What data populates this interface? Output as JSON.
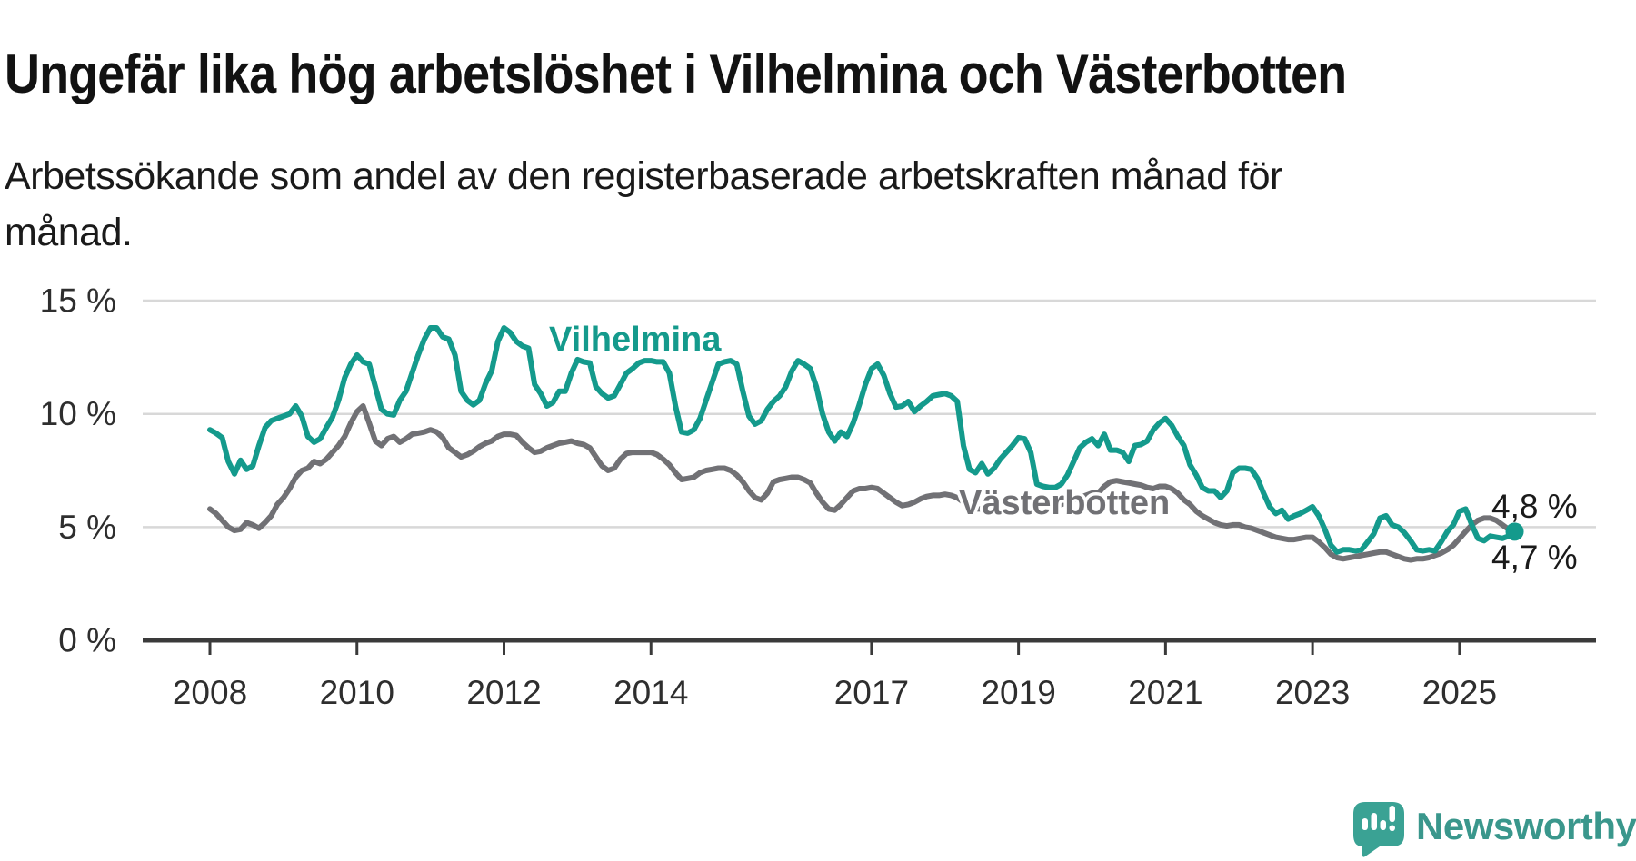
{
  "title": "Ungefär lika hög arbetslöshet i Vilhelmina och Västerbotten",
  "subtitle": "Arbetssökande som andel av den registerbaserade arbetskraften månad för månad.",
  "colors": {
    "vilhelmina": "#149a8c",
    "vasterbotten": "#717175",
    "grid": "#d8d8d8",
    "axis": "#3a3a3a",
    "axis_text": "#2e2e2e",
    "value_text": "#1a1a1a",
    "logo_teal": "#3aa294",
    "logo_text": "#3a978c"
  },
  "logo": {
    "text": "Newsworthy",
    "icon": "speech-bubble-bar-chart-icon"
  },
  "chart_data": {
    "type": "line",
    "title": "Ungefär lika hög arbetslöshet i Vilhelmina och Västerbotten",
    "subtitle": "Arbetssökande som andel av den registerbaserade arbetskraften månad för månad.",
    "unit": "%",
    "x_start_year": 2008,
    "x_start_month": 1,
    "x_frequency": "monthly",
    "x_end_year": 2025,
    "x_end_month": 10,
    "x_ticks": [
      "2008",
      "2010",
      "2012",
      "2014",
      "2017",
      "2019",
      "2021",
      "2023",
      "2025"
    ],
    "x_tick_years": [
      2008,
      2010,
      2012,
      2014,
      2017,
      2019,
      2021,
      2023,
      2025
    ],
    "y_ticks": [
      "15 %",
      "10 %",
      "5 %",
      "0 %"
    ],
    "y_tick_values": [
      15,
      10,
      5,
      0
    ],
    "ylim": [
      0,
      15.5
    ],
    "grid": true,
    "legend_position": "inline-labels",
    "series": [
      {
        "name": "Vilhelmina",
        "color": "#149a8c",
        "end_label": "4,8 %",
        "end_value": 4.8,
        "end_marker": true,
        "values": [
          9.3,
          9.15,
          8.95,
          7.9,
          7.35,
          7.95,
          7.55,
          7.7,
          8.6,
          9.4,
          9.7,
          9.8,
          9.9,
          10.0,
          10.35,
          9.9,
          9.0,
          8.75,
          8.9,
          9.4,
          9.85,
          10.6,
          11.6,
          12.2,
          12.6,
          12.3,
          12.2,
          11.2,
          10.2,
          10.0,
          9.95,
          10.6,
          11.0,
          11.8,
          12.6,
          13.3,
          13.8,
          13.8,
          13.4,
          13.3,
          12.6,
          11.0,
          10.6,
          10.4,
          10.6,
          11.35,
          11.9,
          13.2,
          13.8,
          13.6,
          13.2,
          13.0,
          12.9,
          11.3,
          10.9,
          10.35,
          10.5,
          11.0,
          11.0,
          11.8,
          12.4,
          12.3,
          12.25,
          11.2,
          10.9,
          10.7,
          10.8,
          11.3,
          11.8,
          12.0,
          12.25,
          12.35,
          12.35,
          12.3,
          12.3,
          11.8,
          10.35,
          9.2,
          9.15,
          9.3,
          9.8,
          10.6,
          11.4,
          12.2,
          12.3,
          12.35,
          12.2,
          11.0,
          9.9,
          9.55,
          9.7,
          10.2,
          10.55,
          10.8,
          11.2,
          11.9,
          12.35,
          12.2,
          12.0,
          11.2,
          10.0,
          9.2,
          8.8,
          9.2,
          9.0,
          9.6,
          10.4,
          11.3,
          12.0,
          12.2,
          11.7,
          10.9,
          10.3,
          10.35,
          10.55,
          10.1,
          10.35,
          10.55,
          10.8,
          10.85,
          10.9,
          10.8,
          10.55,
          8.6,
          7.55,
          7.4,
          7.8,
          7.35,
          7.6,
          8.0,
          8.3,
          8.6,
          8.95,
          8.9,
          8.3,
          6.9,
          6.8,
          6.75,
          6.75,
          6.9,
          7.3,
          7.9,
          8.5,
          8.75,
          8.9,
          8.6,
          9.1,
          8.4,
          8.4,
          8.3,
          7.9,
          8.6,
          8.65,
          8.8,
          9.3,
          9.6,
          9.8,
          9.5,
          9.0,
          8.6,
          7.75,
          7.3,
          6.75,
          6.6,
          6.6,
          6.3,
          6.6,
          7.4,
          7.6,
          7.6,
          7.55,
          7.15,
          6.5,
          5.9,
          5.6,
          5.75,
          5.35,
          5.5,
          5.6,
          5.75,
          5.9,
          5.5,
          4.9,
          4.2,
          3.9,
          4.0,
          4.0,
          3.95,
          4.0,
          4.35,
          4.7,
          5.4,
          5.5,
          5.1,
          5.0,
          4.75,
          4.4,
          4.0,
          3.95,
          4.0,
          3.95,
          4.35,
          4.8,
          5.1,
          5.7,
          5.8,
          5.1,
          4.5,
          4.4,
          4.6,
          4.55,
          4.5,
          4.6,
          4.8
        ]
      },
      {
        "name": "Västerbotten",
        "color": "#717175",
        "end_label": "4,7 %",
        "end_value": 4.7,
        "end_marker": false,
        "values": [
          5.8,
          5.6,
          5.3,
          5.0,
          4.85,
          4.9,
          5.2,
          5.1,
          4.95,
          5.2,
          5.5,
          6.0,
          6.3,
          6.7,
          7.2,
          7.5,
          7.6,
          7.9,
          7.8,
          8.0,
          8.3,
          8.6,
          9.0,
          9.6,
          10.1,
          10.35,
          9.6,
          8.8,
          8.6,
          8.9,
          9.0,
          8.75,
          8.9,
          9.1,
          9.15,
          9.2,
          9.3,
          9.2,
          8.95,
          8.5,
          8.3,
          8.1,
          8.2,
          8.35,
          8.55,
          8.7,
          8.8,
          9.0,
          9.1,
          9.1,
          9.05,
          8.75,
          8.5,
          8.3,
          8.35,
          8.5,
          8.6,
          8.7,
          8.75,
          8.8,
          8.7,
          8.65,
          8.5,
          8.1,
          7.7,
          7.5,
          7.6,
          8.0,
          8.25,
          8.3,
          8.3,
          8.3,
          8.3,
          8.2,
          8.0,
          7.75,
          7.4,
          7.1,
          7.15,
          7.2,
          7.4,
          7.5,
          7.55,
          7.6,
          7.6,
          7.5,
          7.3,
          7.0,
          6.6,
          6.3,
          6.2,
          6.5,
          7.0,
          7.1,
          7.15,
          7.2,
          7.2,
          7.1,
          6.95,
          6.5,
          6.1,
          5.8,
          5.75,
          6.0,
          6.3,
          6.6,
          6.7,
          6.7,
          6.75,
          6.7,
          6.5,
          6.3,
          6.1,
          5.95,
          6.0,
          6.1,
          6.25,
          6.35,
          6.4,
          6.4,
          6.45,
          6.4,
          6.3,
          6.1,
          5.9,
          5.8,
          5.8,
          5.9,
          6.0,
          6.1,
          6.15,
          6.2,
          6.3,
          6.25,
          6.15,
          6.0,
          5.9,
          5.85,
          5.9,
          6.0,
          6.1,
          6.2,
          6.3,
          6.4,
          6.5,
          6.5,
          6.8,
          7.0,
          7.05,
          7.0,
          6.95,
          6.9,
          6.85,
          6.75,
          6.7,
          6.8,
          6.8,
          6.7,
          6.5,
          6.2,
          6.0,
          5.7,
          5.5,
          5.35,
          5.2,
          5.1,
          5.05,
          5.1,
          5.1,
          5.0,
          4.95,
          4.85,
          4.75,
          4.65,
          4.55,
          4.5,
          4.45,
          4.45,
          4.5,
          4.55,
          4.55,
          4.35,
          4.1,
          3.8,
          3.65,
          3.6,
          3.65,
          3.7,
          3.75,
          3.8,
          3.85,
          3.9,
          3.9,
          3.8,
          3.7,
          3.6,
          3.55,
          3.6,
          3.6,
          3.65,
          3.75,
          3.85,
          4.0,
          4.2,
          4.5,
          4.8,
          5.1,
          5.3,
          5.4,
          5.4,
          5.3,
          5.1,
          4.9,
          4.7
        ]
      }
    ]
  }
}
